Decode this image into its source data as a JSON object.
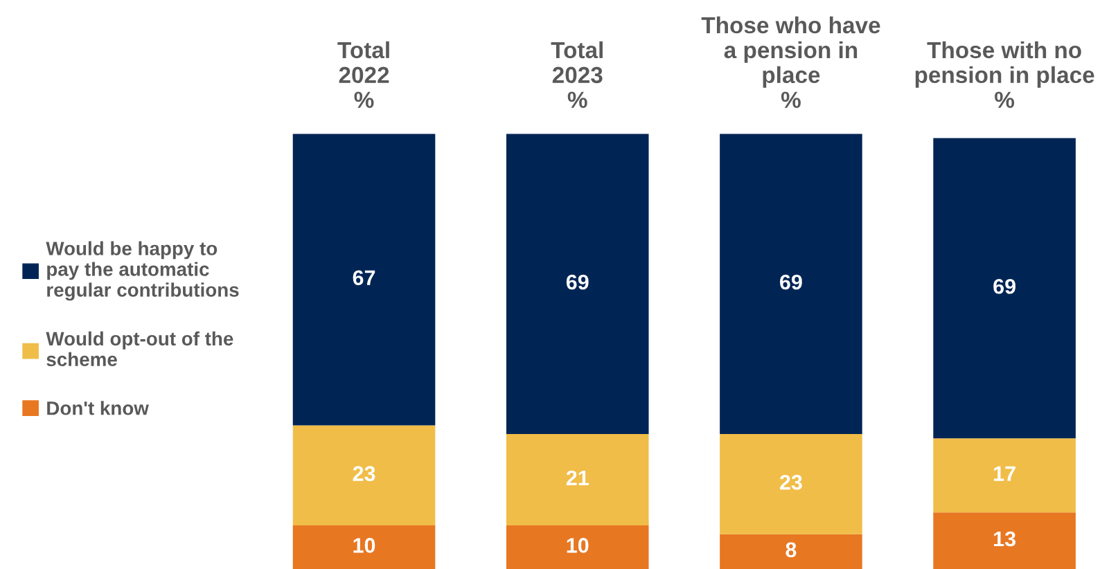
{
  "chart_data": {
    "type": "bar",
    "stacked": true,
    "categories": [
      "Total\n2022\n%",
      "Total\n2023\n%",
      "Those who have\na pension in\nplace\n%",
      "Those with no\npension in place\n%"
    ],
    "series": [
      {
        "name": "Don't know",
        "color": "#e87722",
        "values": [
          10,
          10,
          8,
          13
        ]
      },
      {
        "name": "Would opt-out of the\nscheme",
        "color": "#f0bd48",
        "values": [
          23,
          21,
          23,
          17
        ]
      },
      {
        "name": "Would be happy to\npay the automatic\nregular contributions",
        "color": "#002554",
        "values": [
          67,
          69,
          69,
          69
        ]
      }
    ],
    "ylim": [
      0,
      100
    ],
    "data_labels": true,
    "tick_labels": "x",
    "legend": "left",
    "grid": false
  }
}
